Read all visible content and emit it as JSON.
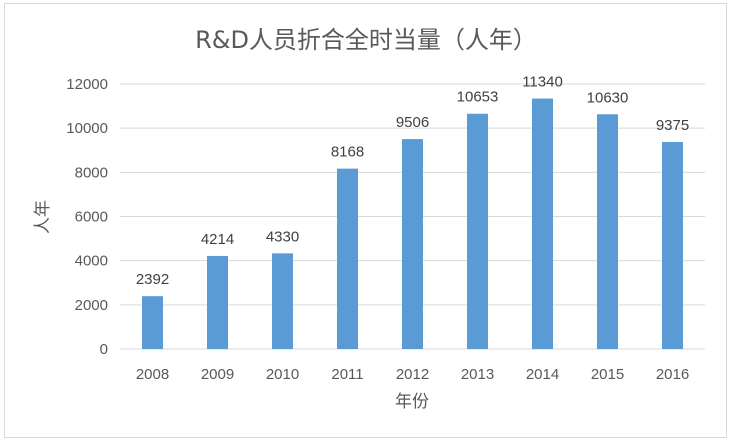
{
  "chart_data": {
    "type": "bar",
    "title": "R&D人员折合全时当量（人年）",
    "xlabel": "年份",
    "ylabel": "人年",
    "categories": [
      "2008",
      "2009",
      "2010",
      "2011",
      "2012",
      "2013",
      "2014",
      "2015",
      "2016"
    ],
    "values": [
      2392,
      4214,
      4330,
      8168,
      9506,
      10653,
      11340,
      10630,
      9375
    ],
    "ylim": [
      0,
      12000
    ],
    "yticks": [
      0,
      2000,
      4000,
      6000,
      8000,
      10000,
      12000
    ],
    "grid": true,
    "legend": "none",
    "bar_color": "#5b9bd5"
  }
}
